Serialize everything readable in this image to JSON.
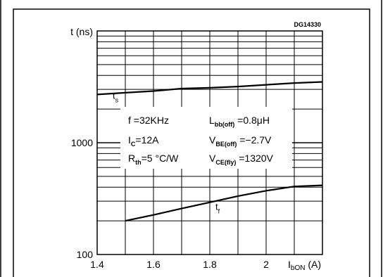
{
  "chart_data": {
    "type": "line",
    "code": "DG14330",
    "ylabel": "t (ns)",
    "xlabel": {
      "main": "I",
      "sub": "bON",
      "unit": " (A)"
    },
    "xscale": "linear",
    "yscale": "log",
    "xlim": [
      1.4,
      2.2
    ],
    "ylim": [
      100,
      10000
    ],
    "x_ticks": [
      {
        "value": 1.4,
        "label": "1.4"
      },
      {
        "value": 1.6,
        "label": "1.6"
      },
      {
        "value": 1.8,
        "label": "1.8"
      },
      {
        "value": 2.0,
        "label": "2"
      }
    ],
    "y_ticks": [
      {
        "value": 100,
        "label": "100"
      },
      {
        "value": 1000,
        "label": "1000"
      }
    ],
    "grid": true,
    "series": [
      {
        "name": "ts",
        "label_main": "t",
        "label_sub": "s",
        "points": [
          [
            1.4,
            2700
          ],
          [
            1.5,
            2800
          ],
          [
            1.6,
            2900
          ],
          [
            1.7,
            3050
          ],
          [
            1.8,
            3100
          ],
          [
            1.9,
            3180
          ],
          [
            2.0,
            3300
          ],
          [
            2.1,
            3420
          ],
          [
            2.2,
            3500
          ]
        ]
      },
      {
        "name": "tf",
        "label_main": "t",
        "label_sub": "f",
        "points": [
          [
            1.5,
            200
          ],
          [
            1.6,
            226
          ],
          [
            1.7,
            258
          ],
          [
            1.8,
            293
          ],
          [
            1.9,
            333
          ],
          [
            2.0,
            372
          ],
          [
            2.1,
            406
          ],
          [
            2.2,
            416
          ]
        ]
      }
    ],
    "conditions": [
      [
        {
          "main": "f =32KHz"
        },
        {
          "main": "L",
          "sub": "bb(off)",
          "rest": " =0.8μH"
        }
      ],
      [
        {
          "main": "I",
          "sub": "C",
          "rest": "=12A"
        },
        {
          "main": "V",
          "sub": "BE(off)",
          "rest": " =−2.7V"
        }
      ],
      [
        {
          "main": "R",
          "sub": "th",
          "rest": "=5 °C/W"
        },
        {
          "main": "V",
          "sub": "CE(fly)",
          "rest": " =1320V"
        }
      ]
    ]
  }
}
